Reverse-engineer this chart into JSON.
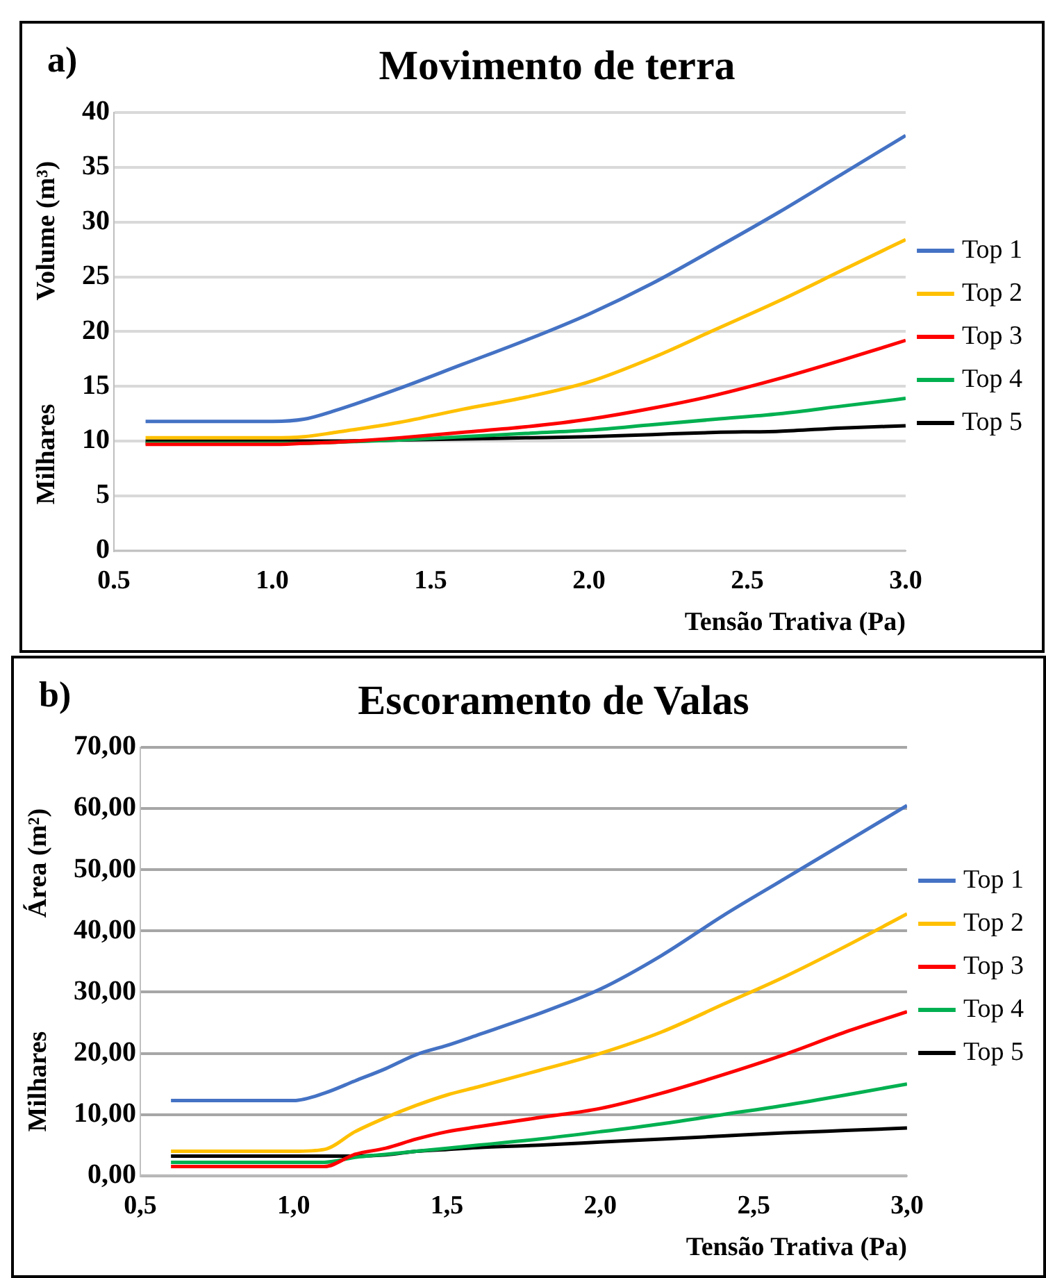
{
  "chart_data": [
    {
      "type": "line",
      "title": "Movimento de terra",
      "xlabel": "Tensão Trativa (Pa)",
      "ylabel": "Volume (m³)",
      "annotations": [
        "a)",
        "Milhares"
      ],
      "x": [
        0.6,
        0.8,
        1.0,
        1.1,
        1.2,
        1.4,
        1.6,
        1.8,
        2.0,
        2.2,
        2.4,
        2.6,
        2.8,
        3.0
      ],
      "xlim": [
        0.5,
        3.0
      ],
      "xticks": [
        {
          "value": 0.5,
          "label": "0.5"
        },
        {
          "value": 1.0,
          "label": "1.0"
        },
        {
          "value": 1.5,
          "label": "1.5"
        },
        {
          "value": 2.0,
          "label": "2.0"
        },
        {
          "value": 2.5,
          "label": "2.5"
        },
        {
          "value": 3.0,
          "label": "3.0"
        }
      ],
      "ylim": [
        0,
        40
      ],
      "yticks": [
        0,
        5,
        10,
        15,
        20,
        25,
        30,
        35,
        40
      ],
      "grid": "y",
      "legend": "right",
      "marker": "none",
      "line_style": "solid",
      "series": [
        {
          "name": "Top 1",
          "color": "#4472c4",
          "values": [
            11.8,
            11.8,
            11.8,
            12.0,
            12.8,
            14.8,
            17.0,
            19.2,
            21.6,
            24.4,
            27.6,
            30.9,
            34.4,
            37.9
          ]
        },
        {
          "name": "Top 2",
          "color": "#ffc000",
          "values": [
            10.3,
            10.3,
            10.3,
            10.4,
            10.8,
            11.7,
            12.9,
            14.0,
            15.4,
            17.6,
            20.2,
            22.8,
            25.6,
            28.4
          ]
        },
        {
          "name": "Top 3",
          "color": "#ff0000",
          "values": [
            9.7,
            9.7,
            9.7,
            9.8,
            9.9,
            10.3,
            10.8,
            11.3,
            12.0,
            13.0,
            14.2,
            15.7,
            17.4,
            19.2
          ]
        },
        {
          "name": "Top 4",
          "color": "#00b050",
          "values": [
            9.8,
            9.8,
            9.8,
            9.8,
            9.9,
            10.1,
            10.4,
            10.7,
            11.0,
            11.5,
            12.0,
            12.5,
            13.2,
            13.9
          ]
        },
        {
          "name": "Top 5",
          "color": "#000000",
          "values": [
            10.0,
            10.0,
            10.0,
            10.0,
            10.0,
            10.1,
            10.2,
            10.3,
            10.4,
            10.6,
            10.8,
            10.9,
            11.2,
            11.4
          ]
        }
      ]
    },
    {
      "type": "line",
      "title": "Escoramento de Valas",
      "xlabel": "Tensão Trativa (Pa)",
      "ylabel": "Área (m²)",
      "annotations": [
        "b)",
        "Milhares"
      ],
      "x": [
        0.6,
        0.8,
        1.0,
        1.1,
        1.2,
        1.3,
        1.4,
        1.5,
        1.6,
        1.8,
        2.0,
        2.2,
        2.4,
        2.6,
        2.8,
        3.0
      ],
      "xlim": [
        0.5,
        3.0
      ],
      "xticks": [
        {
          "value": 0.5,
          "label": "0,5"
        },
        {
          "value": 1.0,
          "label": "1,0"
        },
        {
          "value": 1.5,
          "label": "1,5"
        },
        {
          "value": 2.0,
          "label": "2,0"
        },
        {
          "value": 2.5,
          "label": "2,5"
        },
        {
          "value": 3.0,
          "label": "3,0"
        }
      ],
      "ylim": [
        0,
        70
      ],
      "yticks": [
        {
          "value": 0,
          "label": "0,00"
        },
        {
          "value": 10,
          "label": "10,00"
        },
        {
          "value": 20,
          "label": "20,00"
        },
        {
          "value": 30,
          "label": "30,00"
        },
        {
          "value": 40,
          "label": "40,00"
        },
        {
          "value": 50,
          "label": "50,00"
        },
        {
          "value": 60,
          "label": "60,00"
        },
        {
          "value": 70,
          "label": "70,00"
        }
      ],
      "grid": "y",
      "legend": "right",
      "marker": "none",
      "line_style": "solid",
      "series": [
        {
          "name": "Top 1",
          "color": "#4472c4",
          "values": [
            12.3,
            12.3,
            12.3,
            13.5,
            15.5,
            17.5,
            19.8,
            21.3,
            23.0,
            26.5,
            30.5,
            36.0,
            42.5,
            48.5,
            54.5,
            60.5
          ]
        },
        {
          "name": "Top 2",
          "color": "#ffc000",
          "values": [
            4.0,
            4.0,
            4.0,
            4.3,
            7.2,
            9.5,
            11.5,
            13.2,
            14.5,
            17.2,
            20.0,
            23.5,
            28.0,
            32.5,
            37.5,
            42.8
          ]
        },
        {
          "name": "Top 3",
          "color": "#ff0000",
          "values": [
            1.5,
            1.5,
            1.5,
            1.5,
            3.5,
            4.5,
            6.0,
            7.2,
            8.0,
            9.5,
            11.0,
            13.5,
            16.5,
            19.8,
            23.5,
            26.8
          ]
        },
        {
          "name": "Top 4",
          "color": "#00b050",
          "values": [
            2.2,
            2.2,
            2.2,
            2.2,
            3.0,
            3.5,
            4.0,
            4.5,
            5.0,
            6.0,
            7.2,
            8.5,
            10.0,
            11.5,
            13.2,
            15.0
          ]
        },
        {
          "name": "Top 5",
          "color": "#000000",
          "values": [
            3.2,
            3.2,
            3.2,
            3.2,
            3.2,
            3.4,
            4.0,
            4.3,
            4.6,
            5.0,
            5.5,
            6.0,
            6.5,
            7.0,
            7.4,
            7.8
          ]
        }
      ]
    }
  ]
}
